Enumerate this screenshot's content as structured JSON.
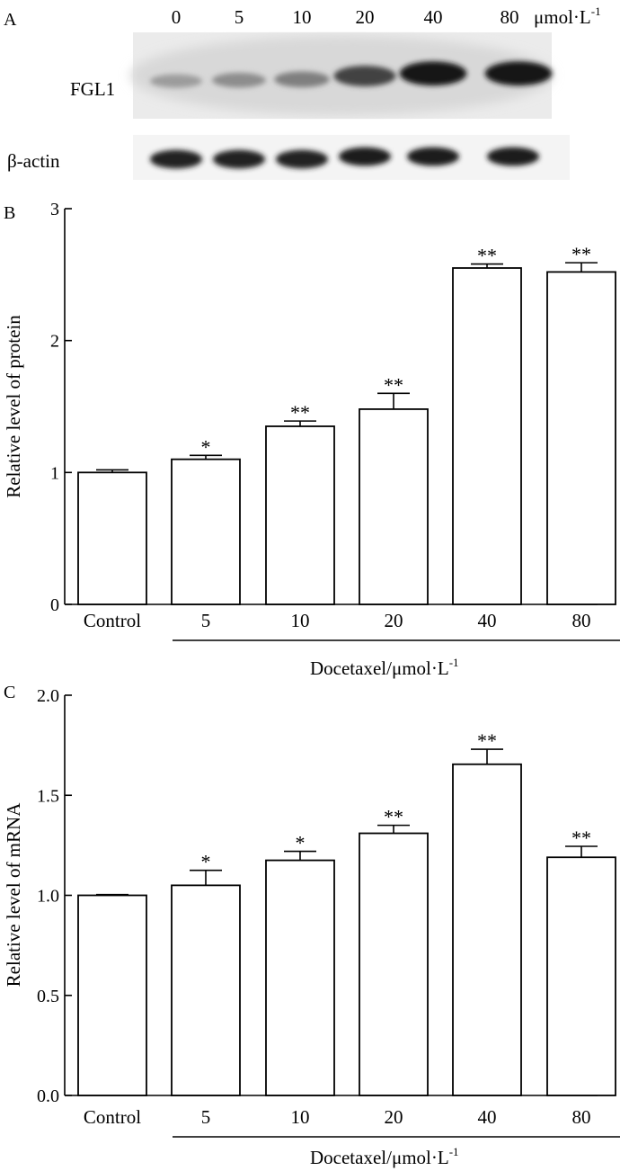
{
  "panels": {
    "a": {
      "label": "A",
      "lane_labels": [
        "0",
        "5",
        "10",
        "20",
        "40",
        "80"
      ],
      "unit_text": "μmol·L",
      "unit_exponent": "-1",
      "rows": [
        {
          "name": "FGL1",
          "intensities": [
            0.35,
            0.42,
            0.48,
            0.75,
            0.95,
            0.95
          ]
        },
        {
          "name": "β-actin",
          "intensities": [
            0.9,
            0.9,
            0.9,
            0.92,
            0.92,
            0.92
          ]
        }
      ]
    }
  },
  "chart_data": [
    {
      "type": "bar",
      "panel_label": "B",
      "title": "",
      "categories": [
        "Control",
        "5",
        "10",
        "20",
        "40",
        "80"
      ],
      "values": [
        1.0,
        1.1,
        1.35,
        1.48,
        2.55,
        2.52
      ],
      "errors": [
        0.02,
        0.03,
        0.04,
        0.12,
        0.03,
        0.07
      ],
      "significance": [
        "",
        "*",
        "**",
        "**",
        "**",
        "**"
      ],
      "ylabel": "Relative level of protein",
      "xlabel": "Docetaxel/μmol·L",
      "xlabel_exponent": "-1",
      "ylim": [
        0,
        3
      ],
      "yticks": [
        0,
        1,
        2,
        3
      ],
      "ytick_labels": [
        "0",
        "1",
        "2",
        "3"
      ],
      "grid": false
    },
    {
      "type": "bar",
      "panel_label": "C",
      "title": "",
      "categories": [
        "Control",
        "5",
        "10",
        "20",
        "40",
        "80"
      ],
      "values": [
        1.0,
        1.05,
        1.175,
        1.31,
        1.655,
        1.19
      ],
      "errors": [
        0.0,
        0.075,
        0.045,
        0.04,
        0.075,
        0.055
      ],
      "significance": [
        "",
        "*",
        "*",
        "**",
        "**",
        "**"
      ],
      "ylabel": "Relative level of mRNA",
      "xlabel": "Docetaxel/μmol·L",
      "xlabel_exponent": "-1",
      "ylim": [
        0,
        2
      ],
      "yticks": [
        0,
        0.5,
        1,
        1.5,
        2
      ],
      "ytick_labels": [
        "0.0",
        "0.5",
        "1.0",
        "1.5",
        "2.0"
      ],
      "grid": false
    }
  ]
}
